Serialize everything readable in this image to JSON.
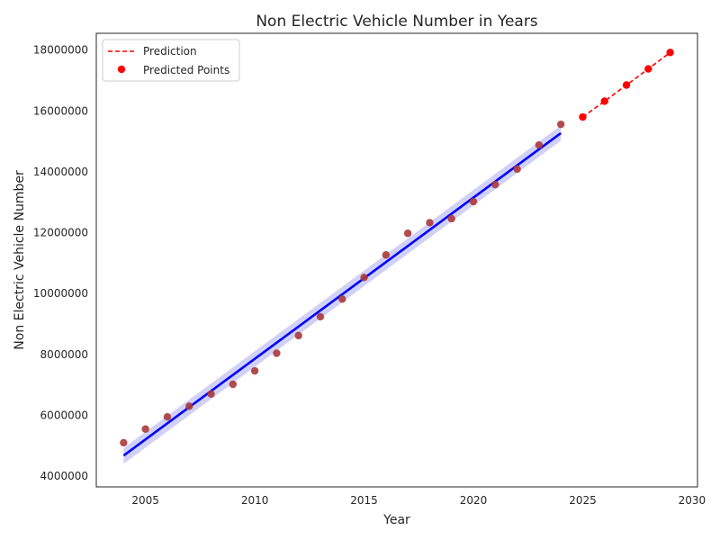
{
  "chart_data": {
    "type": "scatter",
    "title": "Non Electric Vehicle Number in Years",
    "xlabel": "Year",
    "ylabel": "Non Electric Vehicle Number",
    "xlim": [
      2002.75,
      2030.25
    ],
    "ylim": [
      3650000,
      18550000
    ],
    "xticks": [
      2005,
      2010,
      2015,
      2020,
      2025,
      2030
    ],
    "yticks": [
      4000000,
      6000000,
      8000000,
      10000000,
      12000000,
      14000000,
      16000000,
      18000000
    ],
    "grid": false,
    "legend_position": "top-left",
    "colors": {
      "observed": "#a83a3a",
      "fit": "#0000ff",
      "fit_band": "#b3b3f2",
      "prediction": "#ff0000"
    },
    "legend": [
      {
        "label": "Prediction",
        "style": "dashed-line",
        "color": "#ff0000"
      },
      {
        "label": "Predicted Points",
        "style": "dot",
        "color": "#ff0000"
      }
    ],
    "observed": {
      "x": [
        2004,
        2005,
        2006,
        2007,
        2008,
        2009,
        2010,
        2011,
        2012,
        2013,
        2014,
        2015,
        2016,
        2017,
        2018,
        2019,
        2020,
        2021,
        2022,
        2023,
        2024
      ],
      "y": [
        5100000,
        5550000,
        5950000,
        6300000,
        6700000,
        7020000,
        7460000,
        8040000,
        8620000,
        9240000,
        9820000,
        10530000,
        11270000,
        11980000,
        12330000,
        12460000,
        13020000,
        13580000,
        14090000,
        14880000,
        15560000
      ]
    },
    "regression": {
      "x": [
        2004,
        2024
      ],
      "y": [
        4680000,
        15270000
      ],
      "band_lower": [
        4410000,
        15020000
      ],
      "band_upper": [
        4930000,
        15520000
      ]
    },
    "prediction": {
      "x": [
        2025,
        2026,
        2027,
        2028,
        2029
      ],
      "y": [
        15800000,
        16320000,
        16850000,
        17380000,
        17920000
      ]
    }
  }
}
